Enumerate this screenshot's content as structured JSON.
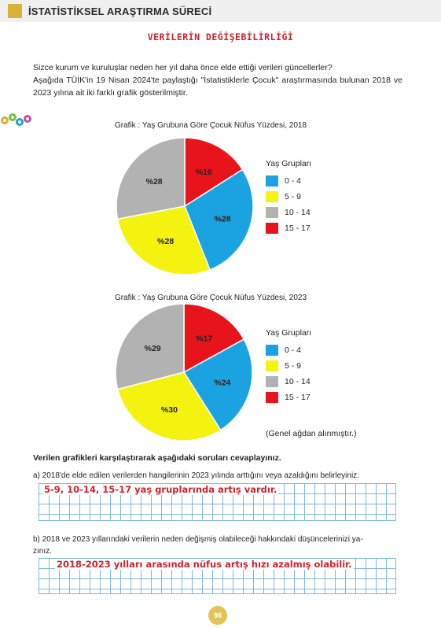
{
  "header": {
    "title": "İSTATİSTİKSEL ARAŞTIRMA SÜRECİ"
  },
  "subtitle": "VERİLERİN DEĞİŞEBİLİRLİĞİ",
  "intro": {
    "line1": "Sizce kurum ve kuruluşlar neden her yıl daha önce elde ettiği verileri güncellerler?",
    "line2": "Aşağıda TÜİK'in 19 Nisan 2024'te paylaştığı \"İstatistiklerle Çocuk\" araştırmasında bulunan 2018 ve 2023 yılına ait iki farklı grafik gösterilmiştir."
  },
  "colors": {
    "g0_4": "#1aa3e0",
    "g5_9": "#f4f20f",
    "g10_14": "#b2b2b2",
    "g15_17": "#e8141c"
  },
  "chart_data": [
    {
      "type": "pie",
      "title": "Grafik : Yaş Grubuna Göre Çocuk Nüfus Yüzdesi, 2018",
      "legend_title": "Yaş Grupları",
      "categories": [
        "0 - 4",
        "5 - 9",
        "10 - 14",
        "15 - 17"
      ],
      "values": [
        28,
        28,
        28,
        16
      ],
      "labels": [
        "%28",
        "%28",
        "%28",
        "%16"
      ],
      "legend": "right"
    },
    {
      "type": "pie",
      "title": "Grafik : Yaş Grubuna Göre Çocuk Nüfus Yüzdesi, 2023",
      "legend_title": "Yaş Grupları",
      "categories": [
        "0 - 4",
        "5 - 9",
        "10 - 14",
        "15 - 17"
      ],
      "values": [
        24,
        30,
        29,
        17
      ],
      "labels": [
        "%24",
        "%30",
        "%29",
        "%17"
      ],
      "legend": "right"
    }
  ],
  "source": "(Genel ağdan alınmıştır.)",
  "questions": {
    "heading": "Verilen grafikleri karşılaştırarak aşağıdaki soruları cevaplayınız.",
    "a_text": "a) 2018'de elde edilen verilerden hangilerinin 2023 yılında arttığını veya azaldığını belirleyiniz.",
    "a_answer": "5-9, 10-14, 15-17 yaş gruplarında artış vardır.",
    "b_text_1": "b) 2018 ve 2023 yıllarındaki verilerin neden değişmiş olabileceği hakkındaki düşüncelerinizi ya-",
    "b_text_2": "zınız.",
    "b_answer": "2018-2023 yılları arasında nüfus artış hızı azalmış olabilir."
  },
  "page_number": "96"
}
